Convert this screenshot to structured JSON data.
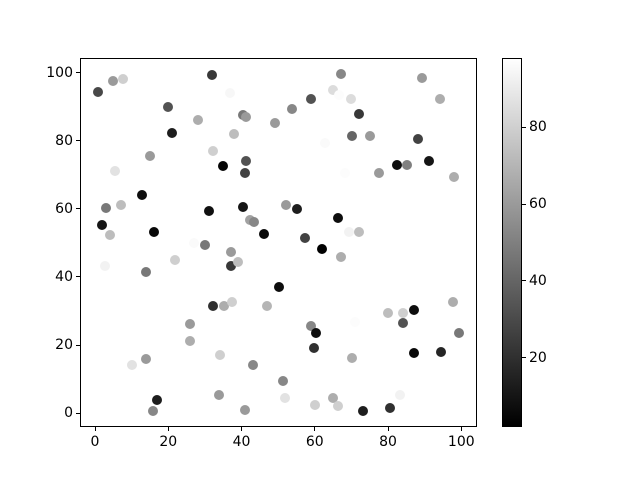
{
  "figure": {
    "background": "#ffffff",
    "text_color": "#000000",
    "spine_color": "#000000"
  },
  "chart_data": {
    "type": "scatter",
    "title": "",
    "xlabel": "",
    "ylabel": "",
    "x_ticks": [
      0,
      20,
      40,
      60,
      80,
      100
    ],
    "y_ticks": [
      0,
      20,
      40,
      60,
      80,
      100
    ],
    "xlim": [
      -4.1,
      104.3
    ],
    "ylim": [
      -4.1,
      104.3
    ],
    "grid": false,
    "colormap": "gray",
    "vmin": 2,
    "vmax": 98,
    "colorbar": {
      "position": "right",
      "ticks": [
        20,
        40,
        60,
        80
      ],
      "gradient_bottom": "#000000",
      "gradient_top": "#ffffff"
    },
    "marker_diameter_px": 10,
    "points": [
      {
        "x": 0.9,
        "y": 94.3,
        "v": 29
      },
      {
        "x": 4.8,
        "y": 97.5,
        "v": 60
      },
      {
        "x": 7.6,
        "y": 98.2,
        "v": 80
      },
      {
        "x": 31.9,
        "y": 99.2,
        "v": 23
      },
      {
        "x": 36.9,
        "y": 94.1,
        "v": 95
      },
      {
        "x": 19.8,
        "y": 89.9,
        "v": 33
      },
      {
        "x": 28.0,
        "y": 86.2,
        "v": 67
      },
      {
        "x": 40.4,
        "y": 87.7,
        "v": 47
      },
      {
        "x": 41.2,
        "y": 86.9,
        "v": 60
      },
      {
        "x": 49.0,
        "y": 85.1,
        "v": 60
      },
      {
        "x": 21.1,
        "y": 82.3,
        "v": 13
      },
      {
        "x": 38.0,
        "y": 82.1,
        "v": 73
      },
      {
        "x": 32.1,
        "y": 77.1,
        "v": 80
      },
      {
        "x": 15.0,
        "y": 75.4,
        "v": 60
      },
      {
        "x": 34.9,
        "y": 72.5,
        "v": 4
      },
      {
        "x": 41.2,
        "y": 74.2,
        "v": 33
      },
      {
        "x": 41.0,
        "y": 70.4,
        "v": 27
      },
      {
        "x": 5.5,
        "y": 71.0,
        "v": 87
      },
      {
        "x": 67.2,
        "y": 99.5,
        "v": 53
      },
      {
        "x": 89.3,
        "y": 98.5,
        "v": 60
      },
      {
        "x": 65.1,
        "y": 95.0,
        "v": 85
      },
      {
        "x": 66.7,
        "y": 93.3,
        "v": 97
      },
      {
        "x": 58.9,
        "y": 92.3,
        "v": 33
      },
      {
        "x": 69.8,
        "y": 92.2,
        "v": 85
      },
      {
        "x": 94.3,
        "y": 92.3,
        "v": 67
      },
      {
        "x": 53.9,
        "y": 89.2,
        "v": 53
      },
      {
        "x": 72.2,
        "y": 88.0,
        "v": 23
      },
      {
        "x": 70.1,
        "y": 81.3,
        "v": 40
      },
      {
        "x": 75.1,
        "y": 81.3,
        "v": 60
      },
      {
        "x": 88.2,
        "y": 80.6,
        "v": 27
      },
      {
        "x": 62.8,
        "y": 79.2,
        "v": 96
      },
      {
        "x": 82.4,
        "y": 73.0,
        "v": 7
      },
      {
        "x": 85.1,
        "y": 73.0,
        "v": 50
      },
      {
        "x": 91.3,
        "y": 74.2,
        "v": 10
      },
      {
        "x": 68.3,
        "y": 70.6,
        "v": 97
      },
      {
        "x": 77.4,
        "y": 70.6,
        "v": 60
      },
      {
        "x": 97.9,
        "y": 69.3,
        "v": 67
      },
      {
        "x": 12.9,
        "y": 64.2,
        "v": 7
      },
      {
        "x": 3.0,
        "y": 60.2,
        "v": 47
      },
      {
        "x": 7.0,
        "y": 61.2,
        "v": 73
      },
      {
        "x": 1.8,
        "y": 55.4,
        "v": 10
      },
      {
        "x": 4.1,
        "y": 52.4,
        "v": 73
      },
      {
        "x": 16.1,
        "y": 53.2,
        "v": 5
      },
      {
        "x": 31.2,
        "y": 59.3,
        "v": 8
      },
      {
        "x": 40.3,
        "y": 60.5,
        "v": 10
      },
      {
        "x": 42.3,
        "y": 56.6,
        "v": 63
      },
      {
        "x": 43.4,
        "y": 56.0,
        "v": 53
      },
      {
        "x": 46.1,
        "y": 52.6,
        "v": 5
      },
      {
        "x": 26.9,
        "y": 50.1,
        "v": 96
      },
      {
        "x": 30.1,
        "y": 49.5,
        "v": 47
      },
      {
        "x": 37.1,
        "y": 47.3,
        "v": 60
      },
      {
        "x": 21.9,
        "y": 45.1,
        "v": 80
      },
      {
        "x": 37.2,
        "y": 43.3,
        "v": 23
      },
      {
        "x": 39.1,
        "y": 44.5,
        "v": 73
      },
      {
        "x": 2.7,
        "y": 43.1,
        "v": 93
      },
      {
        "x": 13.9,
        "y": 41.4,
        "v": 47
      },
      {
        "x": 52.2,
        "y": 61.2,
        "v": 60
      },
      {
        "x": 55.1,
        "y": 60.0,
        "v": 13
      },
      {
        "x": 66.3,
        "y": 57.3,
        "v": 7
      },
      {
        "x": 69.2,
        "y": 53.2,
        "v": 93
      },
      {
        "x": 72.0,
        "y": 53.2,
        "v": 73
      },
      {
        "x": 57.2,
        "y": 51.4,
        "v": 27
      },
      {
        "x": 62.1,
        "y": 48.2,
        "v": 2
      },
      {
        "x": 67.1,
        "y": 46.0,
        "v": 67
      },
      {
        "x": 50.1,
        "y": 37.0,
        "v": 7
      },
      {
        "x": 32.2,
        "y": 31.5,
        "v": 20
      },
      {
        "x": 35.1,
        "y": 31.4,
        "v": 67
      },
      {
        "x": 37.3,
        "y": 32.6,
        "v": 80
      },
      {
        "x": 46.9,
        "y": 31.4,
        "v": 70
      },
      {
        "x": 26.0,
        "y": 26.3,
        "v": 60
      },
      {
        "x": 25.8,
        "y": 21.1,
        "v": 67
      },
      {
        "x": 13.8,
        "y": 16.0,
        "v": 60
      },
      {
        "x": 10.0,
        "y": 14.2,
        "v": 87
      },
      {
        "x": 34.2,
        "y": 17.2,
        "v": 80
      },
      {
        "x": 43.1,
        "y": 14.2,
        "v": 53
      },
      {
        "x": 33.9,
        "y": 5.4,
        "v": 60
      },
      {
        "x": 17.0,
        "y": 3.8,
        "v": 13
      },
      {
        "x": 15.9,
        "y": 0.5,
        "v": 53
      },
      {
        "x": 41.0,
        "y": 1.0,
        "v": 60
      },
      {
        "x": 80.1,
        "y": 29.5,
        "v": 73
      },
      {
        "x": 84.2,
        "y": 29.5,
        "v": 80
      },
      {
        "x": 87.2,
        "y": 30.2,
        "v": 7
      },
      {
        "x": 97.7,
        "y": 32.6,
        "v": 67
      },
      {
        "x": 58.9,
        "y": 25.7,
        "v": 53
      },
      {
        "x": 60.3,
        "y": 23.4,
        "v": 7
      },
      {
        "x": 59.9,
        "y": 19.2,
        "v": 20
      },
      {
        "x": 70.9,
        "y": 26.8,
        "v": 97
      },
      {
        "x": 84.2,
        "y": 26.5,
        "v": 33
      },
      {
        "x": 99.3,
        "y": 23.6,
        "v": 47
      },
      {
        "x": 70.1,
        "y": 16.2,
        "v": 67
      },
      {
        "x": 87.2,
        "y": 17.7,
        "v": 5
      },
      {
        "x": 94.4,
        "y": 17.9,
        "v": 16
      },
      {
        "x": 51.3,
        "y": 9.5,
        "v": 53
      },
      {
        "x": 51.9,
        "y": 4.5,
        "v": 87
      },
      {
        "x": 60.1,
        "y": 2.5,
        "v": 80
      },
      {
        "x": 65.1,
        "y": 4.5,
        "v": 67
      },
      {
        "x": 66.2,
        "y": 2.2,
        "v": 80
      },
      {
        "x": 73.1,
        "y": 0.5,
        "v": 13
      },
      {
        "x": 80.4,
        "y": 1.5,
        "v": 20
      },
      {
        "x": 83.2,
        "y": 5.2,
        "v": 93
      }
    ]
  }
}
